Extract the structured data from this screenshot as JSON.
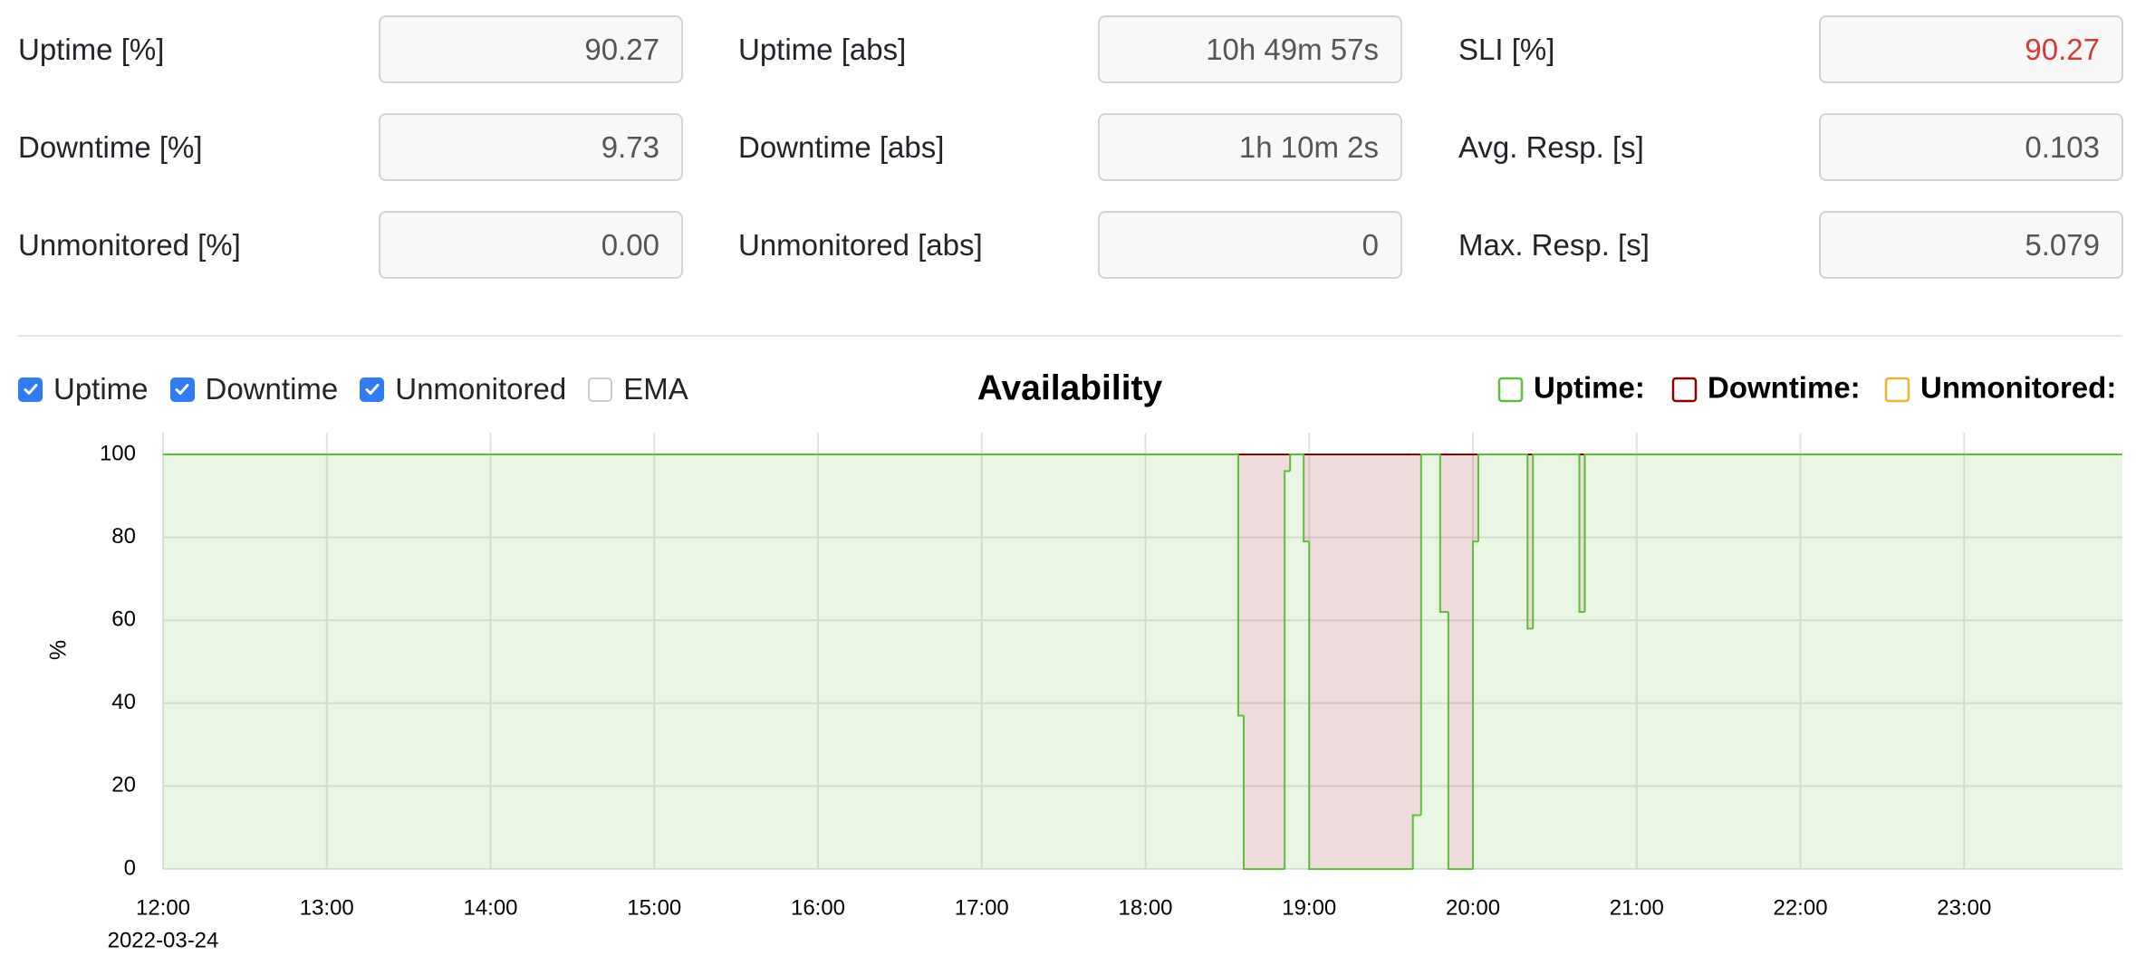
{
  "stats": [
    [
      {
        "label": "Uptime [%]",
        "value": "90.27"
      },
      {
        "label": "Uptime [abs]",
        "value": "10h 49m 57s"
      },
      {
        "label": "SLI [%]",
        "value": "90.27",
        "color": "#d63939"
      }
    ],
    [
      {
        "label": "Downtime [%]",
        "value": "9.73"
      },
      {
        "label": "Downtime [abs]",
        "value": "1h 10m 2s"
      },
      {
        "label": "Avg. Resp. [s]",
        "value": "0.103"
      }
    ],
    [
      {
        "label": "Unmonitored [%]",
        "value": "0.00"
      },
      {
        "label": "Unmonitored [abs]",
        "value": "0"
      },
      {
        "label": "Max. Resp. [s]",
        "value": "5.079"
      }
    ]
  ],
  "controls": [
    {
      "label": "Uptime",
      "checked": true
    },
    {
      "label": "Downtime",
      "checked": true
    },
    {
      "label": "Unmonitored",
      "checked": true
    },
    {
      "label": "EMA",
      "checked": false
    }
  ],
  "chart_data": {
    "type": "step",
    "title": "Availability",
    "y_label": "%",
    "x_date": "2022-03-24",
    "x": [
      "12:00",
      "18:34",
      "18:36",
      "18:51",
      "18:53",
      "18:58",
      "19:00",
      "19:38",
      "19:41",
      "19:48",
      "19:51",
      "20:00",
      "20:02",
      "20:20",
      "20:22",
      "20:39",
      "20:41"
    ],
    "xlim": [
      "12:00",
      "23:58"
    ],
    "xticks": [
      "12:00",
      "13:00",
      "14:00",
      "15:00",
      "16:00",
      "17:00",
      "18:00",
      "19:00",
      "20:00",
      "21:00",
      "22:00",
      "23:00"
    ],
    "ylim": [
      0,
      100
    ],
    "yticks": [
      0,
      20,
      40,
      60,
      80,
      100
    ],
    "grid": true,
    "series": [
      {
        "name": "Uptime:",
        "color": "#5cbf3a",
        "values": [
          100,
          37,
          0,
          96,
          100,
          79,
          0,
          13,
          100,
          62,
          0,
          79,
          100,
          58,
          100,
          62,
          100
        ]
      },
      {
        "name": "Downtime:",
        "color": "#8b0000",
        "values": [
          0,
          63,
          100,
          4,
          0,
          21,
          100,
          87,
          0,
          38,
          100,
          21,
          0,
          42,
          0,
          38,
          0
        ]
      },
      {
        "name": "Unmonitored:",
        "color": "#f0b429",
        "values": [
          0,
          0,
          0,
          0,
          0,
          0,
          0,
          0,
          0,
          0,
          0,
          0,
          0,
          0,
          0,
          0,
          0
        ]
      }
    ]
  }
}
